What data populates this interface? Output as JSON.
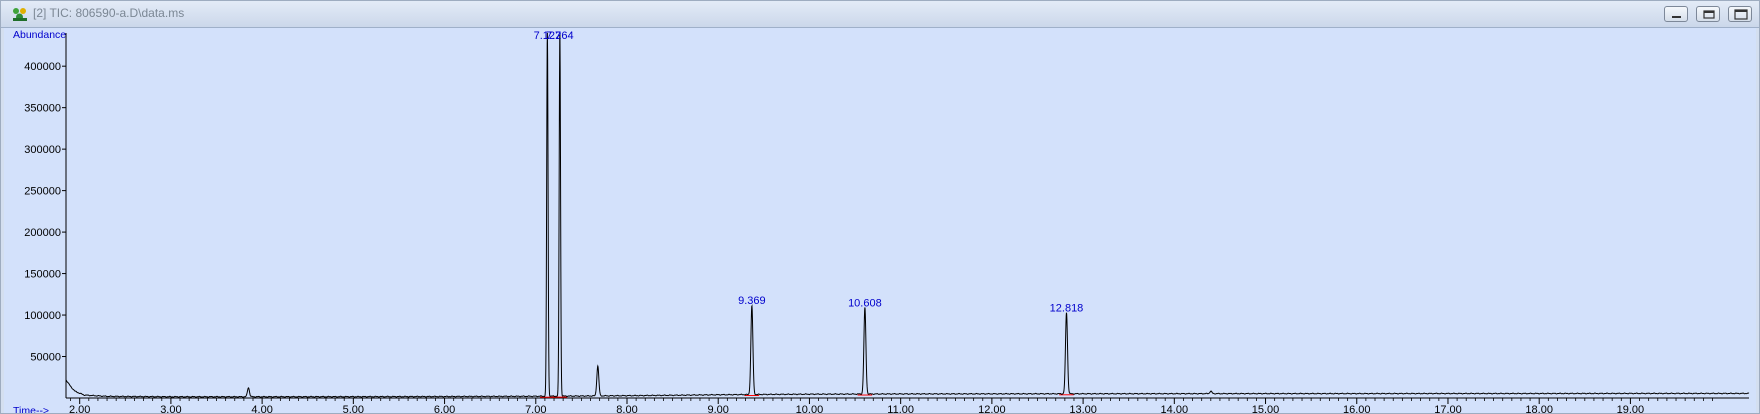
{
  "window": {
    "title": "[2] TIC: 806590-a.D\\data.ms",
    "icon": "chromatogram-app-icon",
    "controls": [
      "minimize-icon",
      "restore-icon",
      "close-icon"
    ]
  },
  "colors": {
    "plot_background": "#d3e1fb",
    "trace": "#000000",
    "axis_title": "#0000cc",
    "peak_label": "#0000cc",
    "integration_baseline": "#ff0000"
  },
  "chart_data": {
    "type": "line",
    "title": "",
    "xlabel": "Time-->",
    "ylabel": "Abundance",
    "xlim": [
      1.85,
      20.3
    ],
    "ylim": [
      0,
      440000
    ],
    "x_ticks": [
      2,
      3,
      4,
      5,
      6,
      7,
      8,
      9,
      10,
      11,
      12,
      13,
      14,
      15,
      16,
      17,
      18,
      19
    ],
    "x_tick_labels": [
      "2.00",
      "3.00",
      "4.00",
      "5.00",
      "6.00",
      "7.00",
      "8.00",
      "9.00",
      "10.00",
      "11.00",
      "12.00",
      "13.00",
      "14.00",
      "15.00",
      "16.00",
      "17.00",
      "18.00",
      "19.00"
    ],
    "y_ticks": [
      50000,
      100000,
      150000,
      200000,
      250000,
      300000,
      350000,
      400000
    ],
    "y_tick_labels": [
      "50000",
      "100000",
      "150000",
      "200000",
      "250000",
      "300000",
      "350000",
      "400000"
    ],
    "grid": false,
    "baseline": [
      [
        1.85,
        22000
      ],
      [
        1.9,
        14000
      ],
      [
        1.95,
        8000
      ],
      [
        2.05,
        3500
      ],
      [
        2.3,
        2000
      ],
      [
        3.0,
        1500
      ],
      [
        4.0,
        1500
      ],
      [
        5.0,
        1600
      ],
      [
        6.0,
        1800
      ],
      [
        7.0,
        2100
      ],
      [
        7.5,
        2400
      ],
      [
        8.0,
        2800
      ],
      [
        8.5,
        3300
      ],
      [
        9.0,
        3900
      ],
      [
        9.5,
        4300
      ],
      [
        10.0,
        4600
      ],
      [
        11.0,
        4900
      ],
      [
        12.0,
        5000
      ],
      [
        13.0,
        5100
      ],
      [
        14.0,
        5200
      ],
      [
        15.0,
        5300
      ],
      [
        16.0,
        5300
      ],
      [
        17.0,
        5400
      ],
      [
        18.0,
        5400
      ],
      [
        19.0,
        5500
      ],
      [
        20.3,
        5500
      ]
    ],
    "peaks": [
      {
        "rt": 3.85,
        "height": 11000,
        "label": ""
      },
      {
        "rt": 7.127,
        "height": 440000,
        "label": "7.127"
      },
      {
        "rt": 7.264,
        "height": 440000,
        "label": "7.264"
      },
      {
        "rt": 7.68,
        "height": 36000,
        "label": ""
      },
      {
        "rt": 9.369,
        "height": 107000,
        "label": "9.369"
      },
      {
        "rt": 10.608,
        "height": 104000,
        "label": "10.608"
      },
      {
        "rt": 12.818,
        "height": 98000,
        "label": "12.818"
      },
      {
        "rt": 14.4,
        "height": 3000,
        "label": ""
      }
    ],
    "integration_marks": [
      7.127,
      7.264,
      9.369,
      10.608,
      12.818
    ],
    "annotations": [
      "7.127",
      "7.264",
      "9.369",
      "10.608",
      "12.818"
    ]
  }
}
